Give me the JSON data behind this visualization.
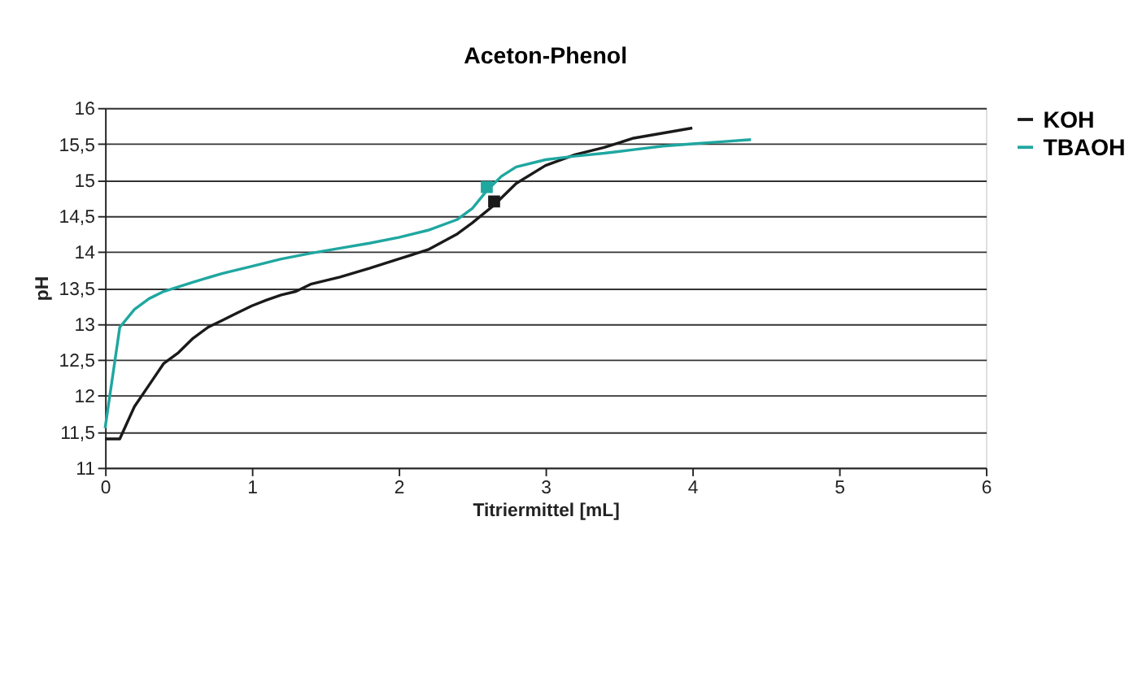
{
  "chart_data": {
    "type": "line",
    "title": "Aceton-Phenol",
    "xlabel": "Titriermittel [mL]",
    "ylabel": "pH",
    "xlim": [
      0,
      6
    ],
    "xticks": [
      0,
      1,
      2,
      3,
      4,
      5,
      6
    ],
    "ylim": [
      11,
      16
    ],
    "yticks": [
      11,
      {
        "value": 11.5,
        "label": "11,5"
      },
      12,
      {
        "value": 12.5,
        "label": "12,5"
      },
      13,
      {
        "value": 13.5,
        "label": "13,5"
      },
      14,
      {
        "value": 14.5,
        "label": "14,5"
      },
      15,
      {
        "value": 15.5,
        "label": "15,5"
      },
      16
    ],
    "grid": "y",
    "legend": "right",
    "series": [
      {
        "name": "KOH",
        "color": "#1a1a1a",
        "x": [
          0,
          0.1,
          0.2,
          0.3,
          0.4,
          0.5,
          0.6,
          0.7,
          0.8,
          0.9,
          1.0,
          1.1,
          1.2,
          1.3,
          1.4,
          1.6,
          1.8,
          2.0,
          2.2,
          2.4,
          2.5,
          2.65,
          2.8,
          3.0,
          3.2,
          3.4,
          3.6,
          3.8,
          4.0
        ],
        "values": [
          11.4,
          11.4,
          11.85,
          12.15,
          12.45,
          12.6,
          12.8,
          12.95,
          13.05,
          13.15,
          13.25,
          13.33,
          13.4,
          13.45,
          13.55,
          13.65,
          13.77,
          13.9,
          14.03,
          14.25,
          14.4,
          14.65,
          14.95,
          15.2,
          15.35,
          15.45,
          15.58,
          15.65,
          15.72
        ]
      },
      {
        "name": "TBAOH",
        "color": "#1fa7a0",
        "x": [
          0,
          0.1,
          0.2,
          0.3,
          0.4,
          0.6,
          0.8,
          1.0,
          1.2,
          1.4,
          1.6,
          1.8,
          2.0,
          2.2,
          2.4,
          2.5,
          2.6,
          2.7,
          2.8,
          3.0,
          3.2,
          3.4,
          3.6,
          3.8,
          4.0,
          4.2,
          4.4
        ],
        "values": [
          11.55,
          12.95,
          13.2,
          13.35,
          13.45,
          13.58,
          13.7,
          13.8,
          13.9,
          13.98,
          14.05,
          14.12,
          14.2,
          14.3,
          14.45,
          14.6,
          14.85,
          15.05,
          15.18,
          15.28,
          15.33,
          15.37,
          15.42,
          15.47,
          15.5,
          15.53,
          15.56
        ]
      },
      {
        "type": "scatter",
        "marker": "square",
        "color": "#1a1a1a",
        "x": [
          2.65
        ],
        "values": [
          14.7
        ]
      },
      {
        "type": "scatter",
        "marker": "square",
        "color": "#1fa7a0",
        "x": [
          2.6
        ],
        "values": [
          14.9
        ]
      }
    ]
  }
}
